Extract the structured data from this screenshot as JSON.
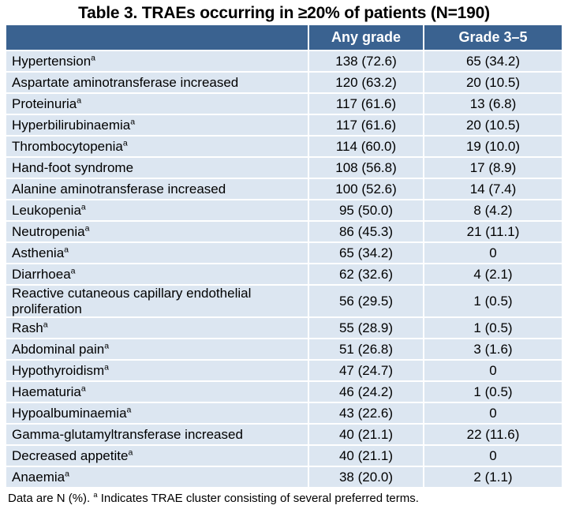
{
  "title": "Table 3. TRAEs occurring in ≥20% of patients (N=190)",
  "colors": {
    "header_bg": "#3a6290",
    "header_text": "#ffffff",
    "row_bg": "#dce6f1",
    "divider": "#ffffff",
    "text": "#000000"
  },
  "table": {
    "columns": [
      "",
      "Any grade",
      "Grade 3–5"
    ],
    "rows": [
      {
        "name": "Hypertension",
        "sup": "a",
        "any_grade": "138 (72.6)",
        "grade_3_5": "65 (34.2)"
      },
      {
        "name": "Aspartate aminotransferase increased",
        "sup": "",
        "any_grade": "120 (63.2)",
        "grade_3_5": "20 (10.5)"
      },
      {
        "name": "Proteinuria",
        "sup": "a",
        "any_grade": "117 (61.6)",
        "grade_3_5": "13 (6.8)"
      },
      {
        "name": "Hyperbilirubinaemia",
        "sup": "a",
        "any_grade": "117 (61.6)",
        "grade_3_5": "20 (10.5)"
      },
      {
        "name": "Thrombocytopenia",
        "sup": "a",
        "any_grade": "114 (60.0)",
        "grade_3_5": "19 (10.0)"
      },
      {
        "name": "Hand-foot syndrome",
        "sup": "",
        "any_grade": "108 (56.8)",
        "grade_3_5": "17 (8.9)"
      },
      {
        "name": "Alanine aminotransferase increased",
        "sup": "",
        "any_grade": "100 (52.6)",
        "grade_3_5": "14 (7.4)"
      },
      {
        "name": "Leukopenia",
        "sup": "a",
        "any_grade": "95 (50.0)",
        "grade_3_5": "8 (4.2)"
      },
      {
        "name": "Neutropenia",
        "sup": "a",
        "any_grade": "86 (45.3)",
        "grade_3_5": "21 (11.1)"
      },
      {
        "name": "Asthenia",
        "sup": "a",
        "any_grade": "65 (34.2)",
        "grade_3_5": "0"
      },
      {
        "name": "Diarrhoea",
        "sup": "a",
        "any_grade": "62 (32.6)",
        "grade_3_5": "4 (2.1)"
      },
      {
        "name": "Reactive cutaneous capillary endothelial proliferation",
        "sup": "",
        "any_grade": "56 (29.5)",
        "grade_3_5": "1 (0.5)"
      },
      {
        "name": "Rash",
        "sup": "a",
        "any_grade": "55 (28.9)",
        "grade_3_5": "1 (0.5)"
      },
      {
        "name": "Abdominal pain",
        "sup": "a",
        "any_grade": "51 (26.8)",
        "grade_3_5": "3 (1.6)"
      },
      {
        "name": "Hypothyroidism",
        "sup": "a",
        "any_grade": "47 (24.7)",
        "grade_3_5": "0"
      },
      {
        "name": "Haematuria",
        "sup": "a",
        "any_grade": "46 (24.2)",
        "grade_3_5": "1 (0.5)"
      },
      {
        "name": "Hypoalbuminaemia",
        "sup": "a",
        "any_grade": "43 (22.6)",
        "grade_3_5": "0"
      },
      {
        "name": "Gamma-glutamyltransferase increased",
        "sup": "",
        "any_grade": "40 (21.1)",
        "grade_3_5": "22 (11.6)"
      },
      {
        "name": "Decreased appetite",
        "sup": "a",
        "any_grade": "40 (21.1)",
        "grade_3_5": "0"
      },
      {
        "name": "Anaemia",
        "sup": "a",
        "any_grade": "38 (20.0)",
        "grade_3_5": "2 (1.1)"
      }
    ]
  },
  "footnote": {
    "part1": "Data are N (%). ",
    "sup": "a",
    "part2": " Indicates TRAE cluster consisting of several preferred terms."
  }
}
